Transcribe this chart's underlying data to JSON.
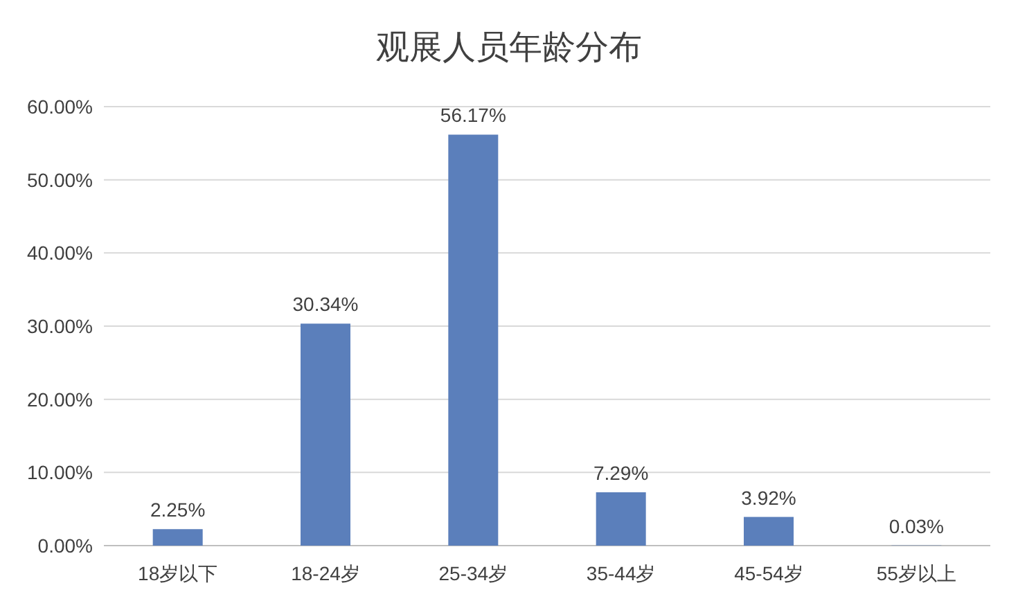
{
  "chart_data": {
    "type": "bar",
    "title": "观展人员年龄分布",
    "categories": [
      "18岁以下",
      "18-24岁",
      "25-34岁",
      "35-44岁",
      "45-54岁",
      "55岁以上"
    ],
    "values": [
      2.25,
      30.34,
      56.17,
      7.29,
      3.92,
      0.03
    ],
    "value_labels": [
      "2.25%",
      "30.34%",
      "56.17%",
      "7.29%",
      "3.92%",
      "0.03%"
    ],
    "color": "#5b7fbb",
    "ylim": [
      0,
      60
    ],
    "yticks": [
      {
        "value": 0,
        "label": "0.00%"
      },
      {
        "value": 10,
        "label": "10.00%"
      },
      {
        "value": 20,
        "label": "20.00%"
      },
      {
        "value": 30,
        "label": "30.00%"
      },
      {
        "value": 40,
        "label": "40.00%"
      },
      {
        "value": 50,
        "label": "50.00%"
      },
      {
        "value": 60,
        "label": "60.00%"
      }
    ],
    "grid": "y"
  }
}
